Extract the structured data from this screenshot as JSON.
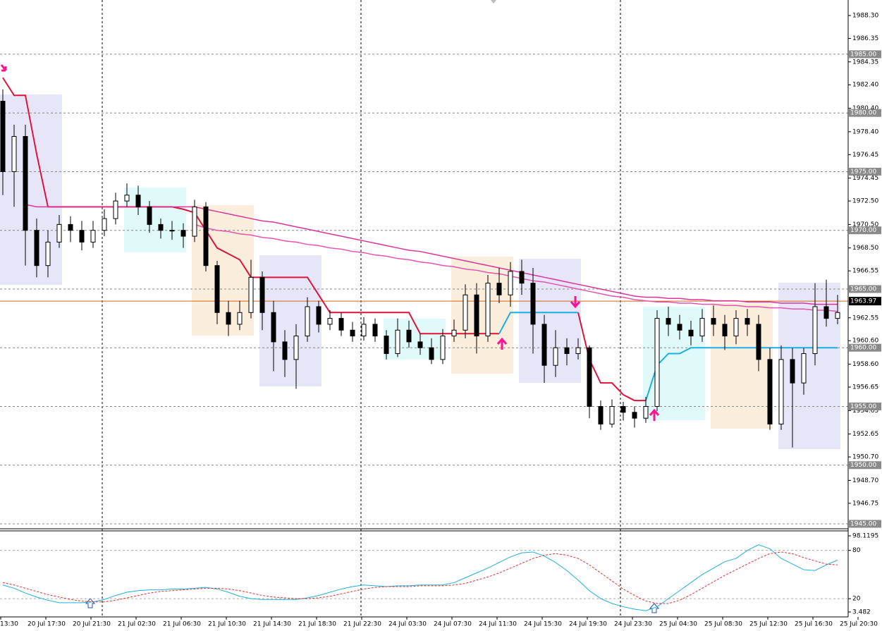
{
  "chart_data": {
    "type": "candlestick",
    "open": [
      1981,
      1975,
      1978,
      1970,
      1967,
      1969,
      1970.5,
      1970,
      1969,
      1970,
      1971,
      1972.5,
      1973,
      1972,
      1970.5,
      1970,
      1970,
      1969.5,
      1972,
      1967,
      1963,
      1962,
      1963,
      1966,
      1963,
      1960.5,
      1959,
      1961,
      1963.5,
      1962,
      1962.5,
      1961.5,
      1961,
      1962,
      1961,
      1959.5,
      1961.5,
      1960.5,
      1960,
      1959,
      1961,
      1961.5,
      1964.5,
      1961,
      1965.5,
      1964.5,
      1966.5,
      1965.5,
      1962,
      1958.5,
      1960,
      1959.5,
      1960,
      1955,
      1953.5,
      1955,
      1954.5,
      1954,
      1955,
      1962.5,
      1962,
      1961.5,
      1961,
      1962.5,
      1962,
      1961,
      1962.5,
      1962,
      1959,
      1953.5,
      1959,
      1957,
      1959.5,
      1963.5,
      1962.5
    ],
    "high": [
      1982,
      1979,
      1979,
      1971,
      1970,
      1971.3,
      1971.2,
      1970.8,
      1970.8,
      1971.8,
      1973.2,
      1974,
      1973.8,
      1972.5,
      1971,
      1970.8,
      1970.6,
      1972.6,
      1972.4,
      1967.4,
      1964,
      1964,
      1967.5,
      1966.5,
      1964,
      1961.5,
      1962,
      1964.3,
      1964,
      1963.2,
      1963,
      1962.2,
      1962.6,
      1962.5,
      1961.5,
      1962.5,
      1962.3,
      1961.2,
      1960.8,
      1961.6,
      1962.4,
      1965.4,
      1965.5,
      1966.2,
      1966.8,
      1967.3,
      1967.5,
      1966.8,
      1962.8,
      1961.5,
      1960.8,
      1960.8,
      1960.2,
      1955.5,
      1955.6,
      1955.4,
      1955,
      1955.8,
      1963.2,
      1963.5,
      1962.8,
      1962.3,
      1963.3,
      1963.6,
      1962.8,
      1963.2,
      1963.3,
      1962.8,
      1960,
      1960.2,
      1960,
      1960,
      1965.5,
      1965.8,
      1964.5
    ],
    "low": [
      1973,
      1972,
      1967,
      1966,
      1966,
      1968.5,
      1969,
      1968.3,
      1968.5,
      1969.5,
      1970.5,
      1972,
      1971.3,
      1969.8,
      1969.3,
      1969.2,
      1968.5,
      1969,
      1966.5,
      1962,
      1961,
      1961.5,
      1962.5,
      1961.5,
      1958,
      1957.5,
      1956.5,
      1960.5,
      1961.3,
      1961.5,
      1961,
      1960.5,
      1960.6,
      1960.5,
      1959,
      1959.2,
      1960,
      1959.4,
      1958.6,
      1958.6,
      1960.5,
      1960.8,
      1959.5,
      1960.5,
      1963.8,
      1963.5,
      1964.5,
      1959.5,
      1957,
      1957.5,
      1958.5,
      1959,
      1954,
      1953,
      1953.2,
      1953.8,
      1953.2,
      1953.6,
      1954.6,
      1961,
      1960.7,
      1960.2,
      1960.5,
      1961,
      1959.8,
      1960.3,
      1961,
      1958,
      1953,
      1953,
      1951.5,
      1956,
      1958.5,
      1961.8,
      1962
    ],
    "close": [
      1975,
      1978,
      1970,
      1967,
      1969,
      1970.5,
      1970,
      1969,
      1970,
      1971,
      1972.5,
      1973,
      1972,
      1970.5,
      1970,
      1970,
      1969.5,
      1972,
      1967,
      1963,
      1962,
      1963,
      1966,
      1963,
      1960.5,
      1959,
      1961,
      1963.5,
      1962,
      1962.5,
      1961.5,
      1961,
      1962,
      1961,
      1959.5,
      1961.5,
      1960.5,
      1960,
      1959,
      1961,
      1961.5,
      1964.5,
      1961,
      1965.5,
      1964.5,
      1966.5,
      1965.5,
      1962,
      1958.5,
      1960,
      1959.5,
      1960,
      1955,
      1953.5,
      1955,
      1954.5,
      1954,
      1955,
      1962.5,
      1962,
      1961.5,
      1961,
      1962.5,
      1962,
      1961,
      1962.5,
      1962,
      1959,
      1953.5,
      1959,
      1957,
      1959.5,
      1963.5,
      1962.5,
      1963
    ],
    "series": [
      {
        "color": "#dc143c",
        "values": [
          1983,
          1981.5,
          1981.5,
          1976.5,
          1972,
          1972,
          1972,
          1972,
          1972,
          1972,
          1972,
          1972,
          1972,
          1972,
          1972,
          1972,
          1971.8,
          1971.5,
          1970,
          1968.5,
          1968,
          1967.5,
          1966,
          1966,
          1966,
          1966,
          1966,
          1966,
          1964.5,
          1963,
          1963,
          1963,
          1963,
          1963,
          1963,
          1963,
          1963,
          1961.2,
          1961.2,
          1961.2,
          1961.2,
          1961.2,
          1961.2,
          1961.2,
          1961.2,
          null,
          null,
          null,
          null,
          null,
          null,
          1963,
          1959,
          1957,
          1957,
          1956,
          1955.5,
          1955.5,
          null,
          null,
          null,
          null,
          null,
          null,
          null,
          null,
          null,
          null,
          null,
          null,
          null,
          null,
          null,
          null,
          null
        ]
      },
      {
        "color": "#1ab0e6",
        "values": [
          null,
          null,
          null,
          null,
          null,
          null,
          null,
          null,
          null,
          null,
          null,
          null,
          null,
          null,
          null,
          null,
          null,
          null,
          null,
          null,
          null,
          null,
          null,
          null,
          null,
          null,
          null,
          null,
          null,
          null,
          null,
          null,
          null,
          null,
          null,
          null,
          null,
          null,
          null,
          null,
          null,
          null,
          null,
          null,
          1961.2,
          1963,
          1963,
          1963,
          1963,
          1963,
          1963,
          1963,
          null,
          null,
          null,
          null,
          null,
          1955.5,
          1958.5,
          1959.5,
          1959.5,
          1960,
          1960,
          1960,
          1960,
          1960,
          1960,
          1960,
          1960,
          1960,
          1960,
          1960,
          1960,
          1960,
          1960
        ]
      },
      {
        "color": "#e0339a",
        "values": [
          null,
          null,
          1972.2,
          1972,
          1972,
          1972,
          1972,
          1972,
          1972,
          1972,
          1972,
          1972,
          1972,
          1972,
          1972,
          1972,
          1972,
          1972,
          1971.8,
          1971.6,
          1971.4,
          1971.2,
          1971.0,
          1970.8,
          1970.7,
          1970.5,
          1970.3,
          1970.1,
          1969.9,
          1969.7,
          1969.5,
          1969.3,
          1969.1,
          1968.9,
          1968.7,
          1968.5,
          1968.3,
          1968.2,
          1968.0,
          1967.8,
          1967.6,
          1967.4,
          1967.2,
          1967.0,
          1966.8,
          1966.6,
          1966.4,
          1966.2,
          1966.0,
          1965.8,
          1965.6,
          1965.4,
          1965.2,
          1965.0,
          1964.8,
          1964.6,
          1964.4,
          1964.3,
          1964.3,
          1964.2,
          1964.2,
          1964.1,
          1964.1,
          1964.0,
          1964.0,
          1964.0,
          1963.9,
          1963.9,
          1963.9,
          1963.8,
          1963.8,
          1963.8,
          1963.7,
          1963.7,
          1963.7
        ]
      },
      {
        "color": "#e754b0",
        "values": [
          null,
          null,
          null,
          null,
          null,
          null,
          null,
          null,
          null,
          null,
          null,
          null,
          null,
          null,
          null,
          null,
          null,
          1970.5,
          1970.2,
          1970.0,
          1969.9,
          1969.7,
          1969.6,
          1969.4,
          1969.3,
          1969.1,
          1969.0,
          1968.8,
          1968.7,
          1968.5,
          1968.4,
          1968.2,
          1968.1,
          1967.9,
          1967.8,
          1967.6,
          1967.5,
          1967.3,
          1967.2,
          1967.0,
          1966.9,
          1966.7,
          1966.6,
          1966.4,
          1966.3,
          1966.1,
          1965.9,
          1965.7,
          1965.6,
          1965.4,
          1965.2,
          1965.0,
          1964.8,
          1964.6,
          1964.4,
          1964.3,
          1964.1,
          1964.0,
          1963.9,
          1963.9,
          1963.8,
          1963.8,
          1963.7,
          1963.7,
          1963.6,
          1963.6,
          1963.5,
          1963.5,
          1963.4,
          1963.4,
          1963.3,
          1963.3,
          1963.2,
          1963.2,
          1963.1
        ]
      }
    ],
    "ylim": [
      1944.58,
      1989.62
    ],
    "yticks": [
      {
        "value": 1988.3,
        "label": "1988.30"
      },
      {
        "value": 1986.35,
        "label": "1986.35"
      },
      {
        "value": 1984.35,
        "label": "1984.35"
      },
      {
        "value": 1982.4,
        "label": "1982.40"
      },
      {
        "value": 1980.4,
        "label": "1980.40"
      },
      {
        "value": 1978.4,
        "label": "1978.40"
      },
      {
        "value": 1976.45,
        "label": "1976.45"
      },
      {
        "value": 1974.45,
        "label": "1974.45"
      },
      {
        "value": 1972.5,
        "label": "1972.50"
      },
      {
        "value": 1970.5,
        "label": "1970.50"
      },
      {
        "value": 1968.5,
        "label": "1968.50"
      },
      {
        "value": 1966.55,
        "label": "1966.55"
      },
      {
        "value": 1962.55,
        "label": "1962.55"
      },
      {
        "value": 1960.6,
        "label": "1960.60"
      },
      {
        "value": 1958.6,
        "label": "1958.60"
      },
      {
        "value": 1956.65,
        "label": "1956.65"
      },
      {
        "value": 1954.65,
        "label": "1954.65"
      },
      {
        "value": 1952.65,
        "label": "1952.65"
      },
      {
        "value": 1950.7,
        "label": "1950.70"
      },
      {
        "value": 1948.7,
        "label": "1948.70"
      },
      {
        "value": 1946.75,
        "label": "1946.75"
      }
    ],
    "levels": [
      {
        "value": 1985,
        "label": "1985.00"
      },
      {
        "value": 1980,
        "label": "1980.00"
      },
      {
        "value": 1975,
        "label": "1975.00"
      },
      {
        "value": 1970,
        "label": "1970.00"
      },
      {
        "value": 1965,
        "label": "1965.00"
      },
      {
        "value": 1960,
        "label": "1960.00"
      },
      {
        "value": 1955,
        "label": "1955.00"
      },
      {
        "value": 1950,
        "label": "1950.00"
      },
      {
        "value": 1945,
        "label": "1945.00"
      }
    ],
    "current_price": 1963.97,
    "time_labels": [
      "13:30",
      "20 Jul 17:30",
      "20 Jul 21:30",
      "21 Jul 02:30",
      "21 Jul 06:30",
      "21 Jul 10:30",
      "21 Jul 14:30",
      "21 Jul 18:30",
      "21 Jul 22:30",
      "24 Jul 03:30",
      "24 Jul 07:30",
      "24 Jul 11:30",
      "24 Jul 15:30",
      "24 Jul 19:30",
      "24 Jul 23:30",
      "25 Jul 04:30",
      "25 Jul 08:30",
      "25 Jul 12:30",
      "25 Jul 16:30",
      "25 Jul 20:30"
    ],
    "oscillator": {
      "ylim": [
        -2.65,
        104.25
      ],
      "yticks": [
        98.1195,
        80,
        20,
        3.482
      ],
      "series": [
        {
          "color": "#20b0d8",
          "values": [
            37,
            33,
            27,
            22,
            18,
            15,
            15,
            15,
            16,
            19,
            24,
            28,
            30,
            31,
            31,
            32,
            32,
            33,
            34,
            32,
            28,
            23,
            20,
            19,
            19,
            19,
            19,
            21,
            24,
            28,
            32,
            35,
            37,
            36,
            35,
            36,
            36,
            37,
            37,
            37,
            40,
            46,
            52,
            58,
            65,
            72,
            77,
            78,
            73,
            65,
            55,
            43,
            30,
            20,
            14,
            10,
            7,
            5,
            10,
            20,
            30,
            40,
            50,
            58,
            66,
            70,
            80,
            87,
            82,
            70,
            63,
            56,
            55,
            62,
            68
          ]
        },
        {
          "color": "#e03030",
          "values": [
            40,
            37,
            33,
            29,
            25,
            22,
            19,
            17,
            16,
            16,
            18,
            21,
            24,
            27,
            29,
            30,
            31,
            32,
            33,
            33,
            32,
            30,
            27,
            24,
            22,
            21,
            20,
            20,
            21,
            23,
            26,
            29,
            32,
            34,
            35,
            35,
            35,
            36,
            36,
            36,
            37,
            39,
            43,
            47,
            52,
            58,
            64,
            70,
            74,
            76,
            74,
            70,
            62,
            52,
            42,
            32,
            24,
            17,
            14,
            14,
            18,
            25,
            33,
            41,
            49,
            56,
            63,
            70,
            76,
            78,
            76,
            71,
            67,
            63,
            62
          ]
        }
      ]
    }
  }
}
